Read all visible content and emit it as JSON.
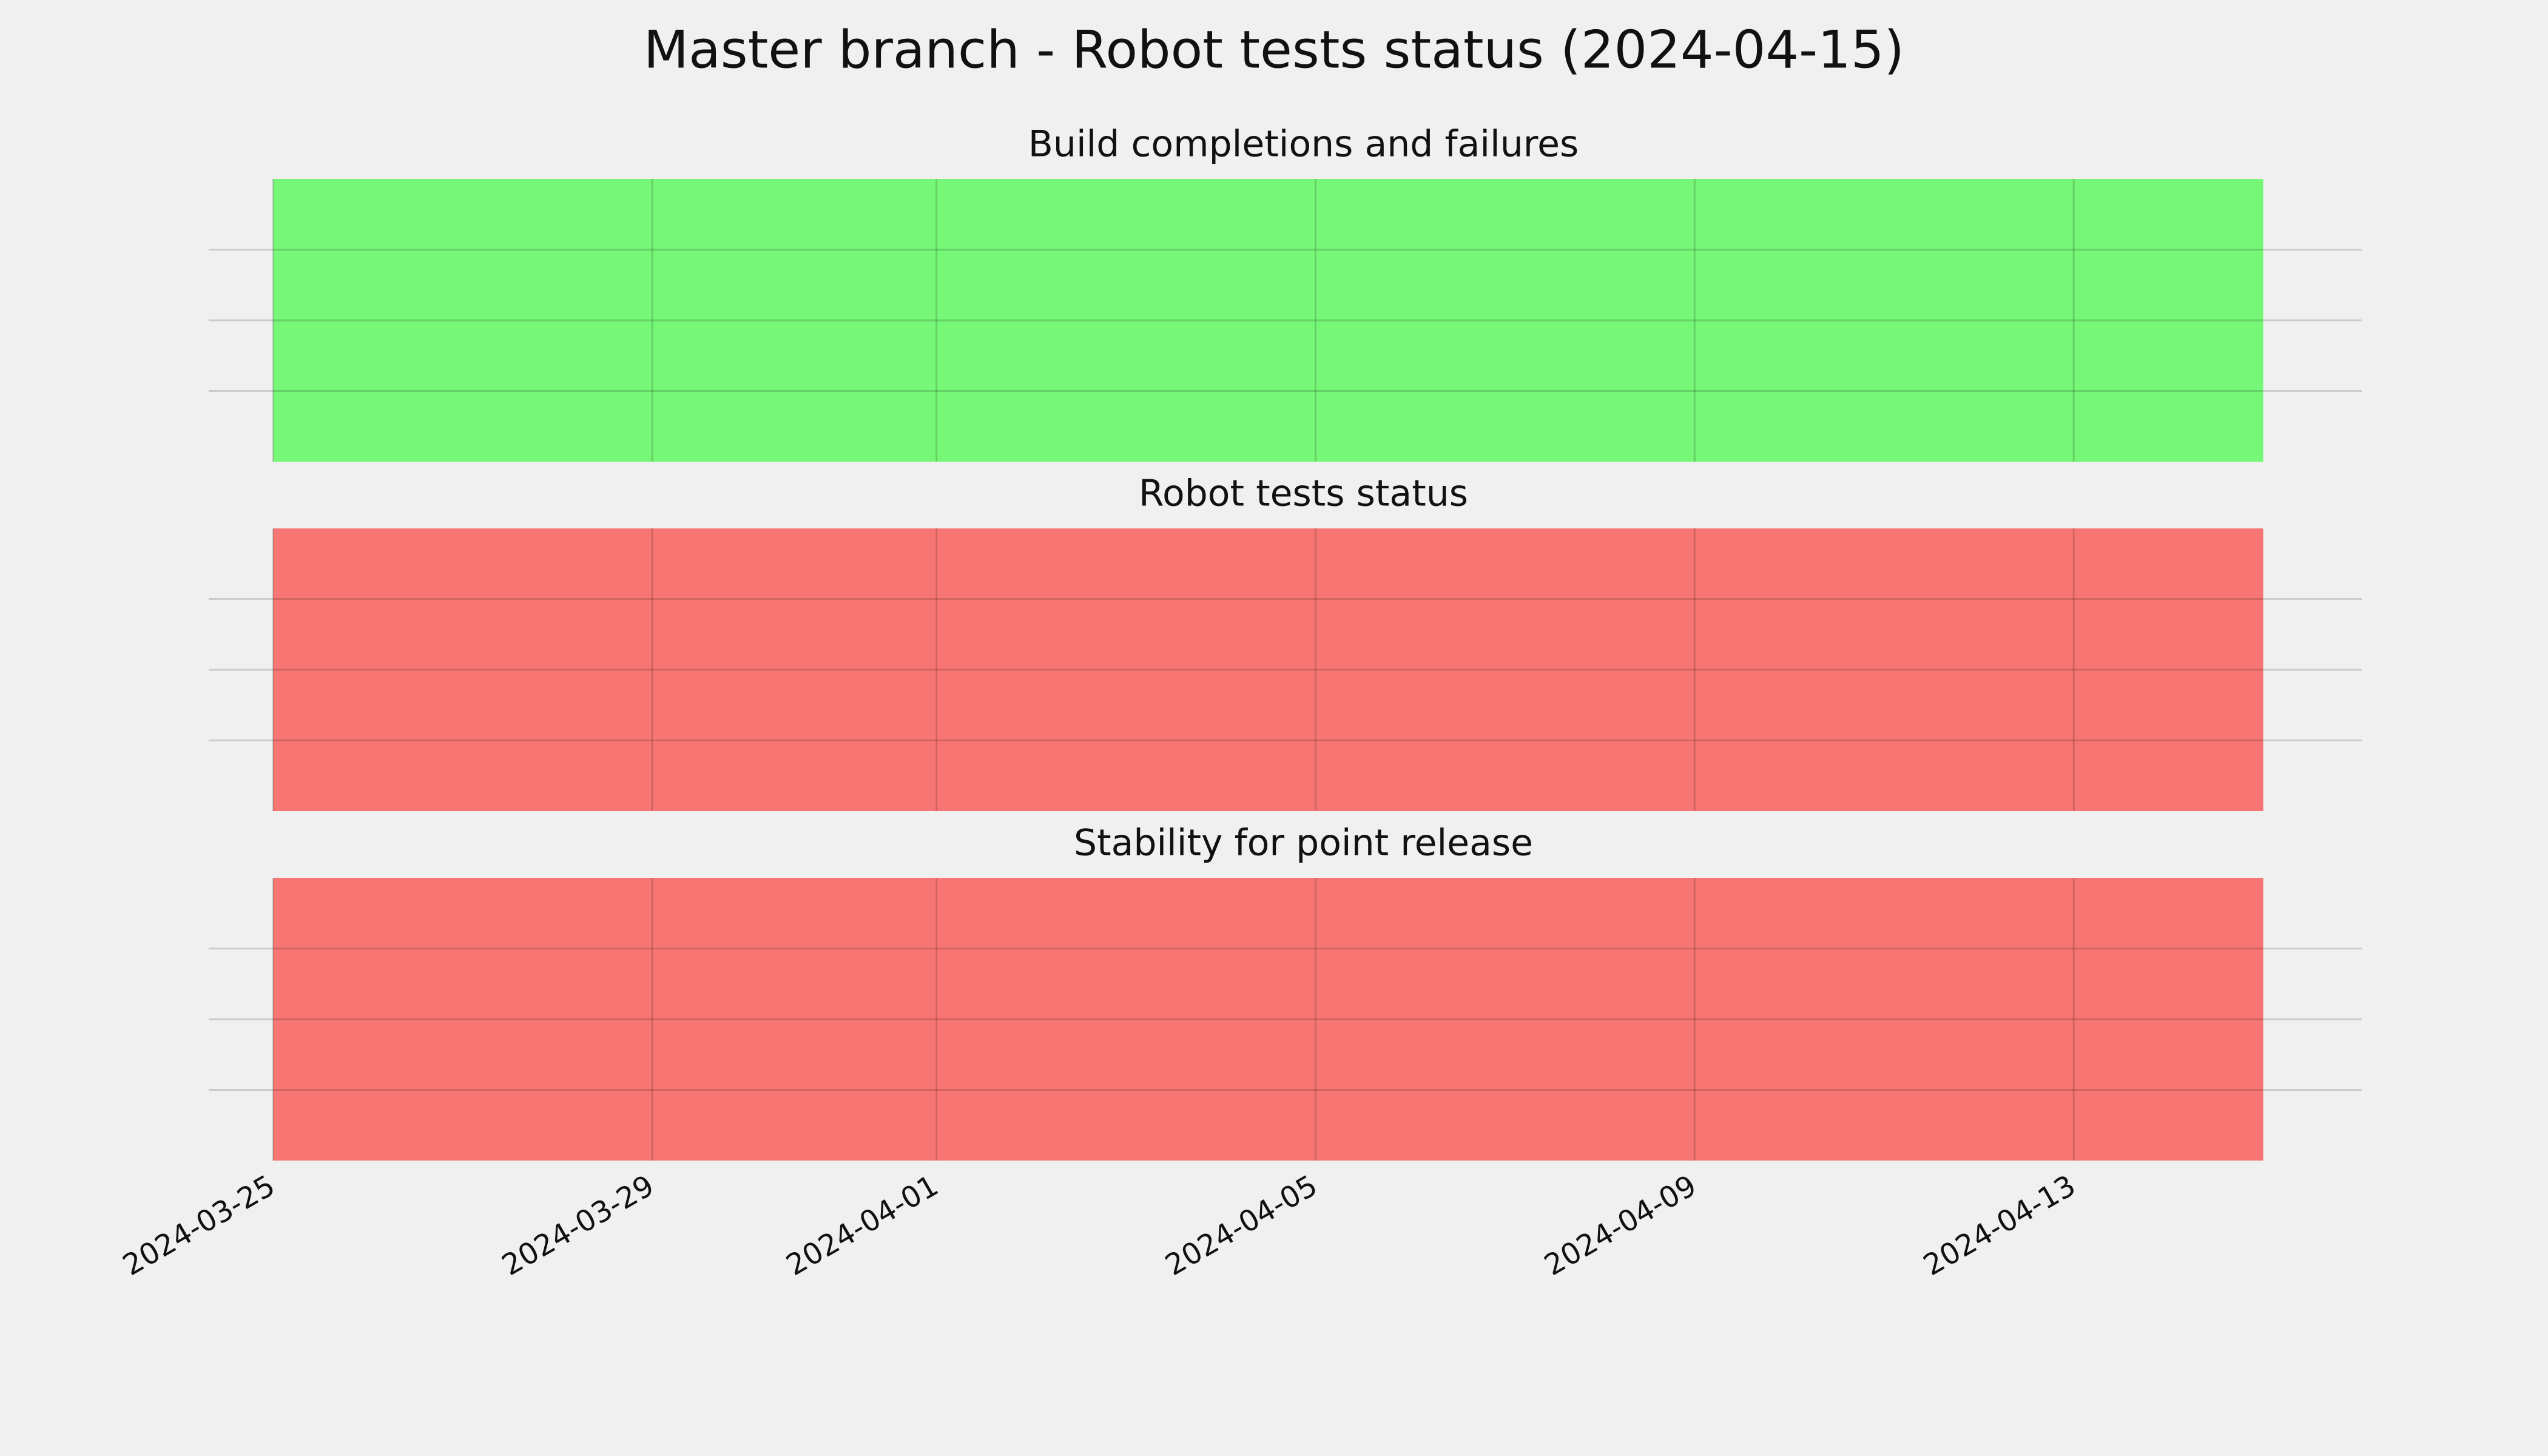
{
  "title": "Master branch - Robot tests status (2024-04-15)",
  "chart_data": [
    {
      "type": "area",
      "title": "Build completions and failures",
      "x": [
        "2024-03-25",
        "2024-04-15"
      ],
      "values": [
        1,
        1
      ],
      "color": "#76f777",
      "xlim": [
        "2024-03-24",
        "2024-04-17"
      ],
      "xticks": [
        "2024-03-25",
        "2024-03-29",
        "2024-04-01",
        "2024-04-05",
        "2024-04-09",
        "2024-04-13"
      ],
      "ylim": [
        0,
        1
      ],
      "yticks": [
        0.25,
        0.5,
        0.75
      ],
      "grid": true
    },
    {
      "type": "area",
      "title": "Robot tests status",
      "x": [
        "2024-03-25",
        "2024-04-15"
      ],
      "values": [
        1,
        1
      ],
      "color": "#f77674",
      "xlim": [
        "2024-03-24",
        "2024-04-17"
      ],
      "xticks": [
        "2024-03-25",
        "2024-03-29",
        "2024-04-01",
        "2024-04-05",
        "2024-04-09",
        "2024-04-13"
      ],
      "ylim": [
        0,
        1
      ],
      "yticks": [
        0.25,
        0.5,
        0.75
      ],
      "grid": true
    },
    {
      "type": "area",
      "title": "Stability for point release",
      "x": [
        "2024-03-25",
        "2024-04-15"
      ],
      "values": [
        1,
        1
      ],
      "color": "#f77674",
      "xlim": [
        "2024-03-24",
        "2024-04-17"
      ],
      "xticks": [
        "2024-03-25",
        "2024-03-29",
        "2024-04-01",
        "2024-04-05",
        "2024-04-09",
        "2024-04-13"
      ],
      "ylim": [
        0,
        1
      ],
      "yticks": [
        0.25,
        0.5,
        0.75
      ],
      "grid": true
    }
  ]
}
